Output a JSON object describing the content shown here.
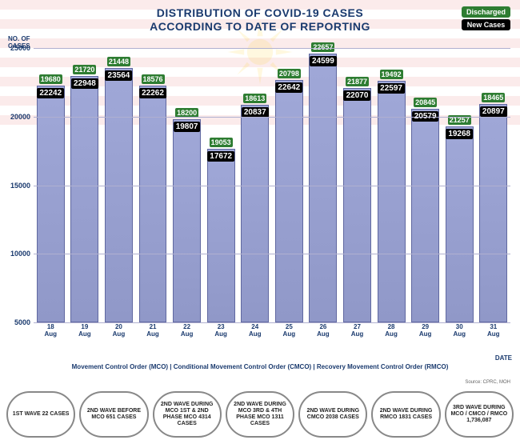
{
  "title_line1": "DISTRIBUTION OF COVID-19 CASES",
  "title_line2": "ACCORDING TO DATE OF REPORTING",
  "legend": {
    "discharged": "Discharged",
    "new_cases": "New Cases"
  },
  "axis": {
    "y_label": "NO. OF\nCASES",
    "x_label": "DATE"
  },
  "chart": {
    "type": "bar",
    "ylim": [
      5000,
      25000
    ],
    "yticks": [
      5000,
      10000,
      15000,
      20000,
      25000
    ],
    "bar_fill": "#9ca4d0",
    "bar_border": "#6068a0",
    "grid_color": "#b0b0d0",
    "discharged_color": "#2e7d32",
    "newcases_color": "#000000",
    "title_color": "#1a3a6e",
    "background_color": "#ffffff",
    "categories": [
      "18\nAug",
      "19\nAug",
      "20\nAug",
      "21\nAug",
      "22\nAug",
      "23\nAug",
      "24\nAug",
      "25\nAug",
      "26\nAug",
      "27\nAug",
      "28\nAug",
      "29\nAug",
      "30\nAug",
      "31\nAug"
    ],
    "new_cases": [
      22242,
      22948,
      23564,
      22262,
      19807,
      17672,
      20837,
      22642,
      24599,
      22070,
      22597,
      20579,
      19268,
      20897
    ],
    "discharged": [
      19680,
      21720,
      21448,
      18576,
      18200,
      19053,
      18613,
      20798,
      22657,
      21877,
      19492,
      20845,
      21257,
      18465
    ]
  },
  "mco_legend": "Movement Control Order (MCO)  |  Conditional Movement Control Order (CMCO)  |  Recovery Movement Control Order (RMCO)",
  "waves": [
    "1ST WAVE 22 CASES",
    "2ND WAVE BEFORE MCO 651 CASES",
    "2ND WAVE DURING MCO 1ST & 2ND PHASE MCO 4314 CASES",
    "2ND WAVE DURING MCO 3RD & 4TH PHASE MCO 1311 CASES",
    "2ND WAVE DURING CMCO 2038 CASES",
    "2ND WAVE DURING RMCO 1831 CASES",
    "3RD WAVE DURING MCO / CMCO / RMCO 1,736,087"
  ],
  "source": "Source: CPRC, MOH"
}
